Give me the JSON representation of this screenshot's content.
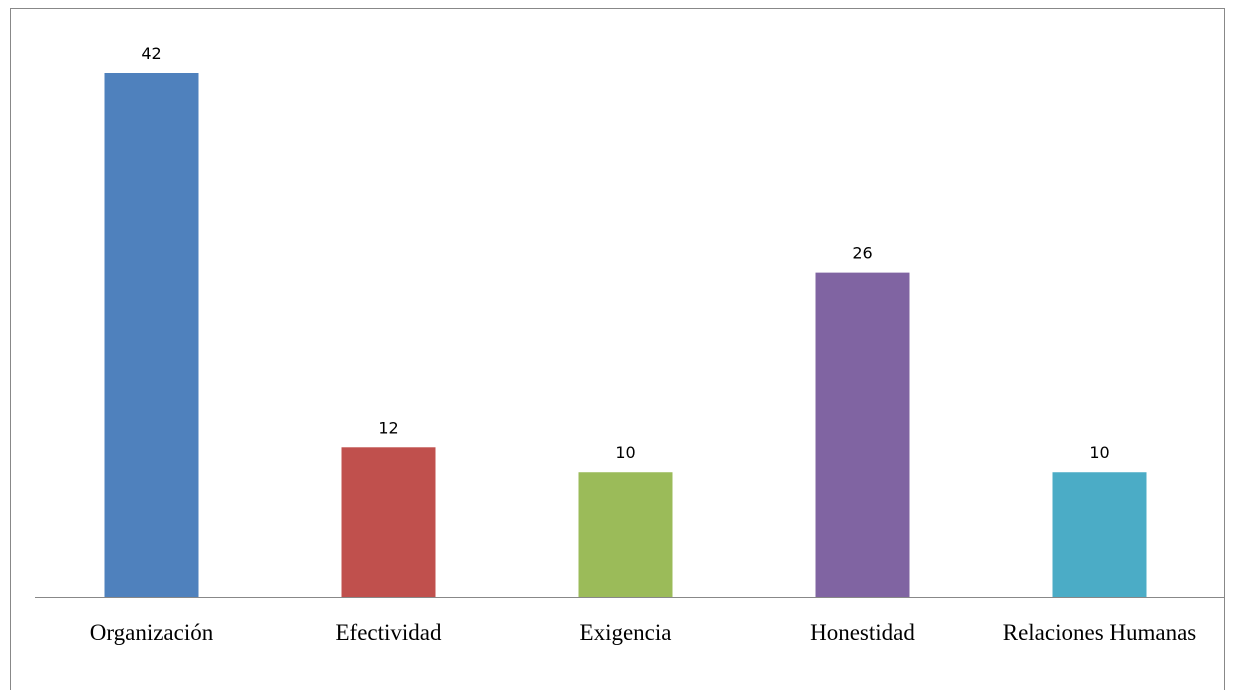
{
  "chart_data": {
    "type": "bar",
    "categories": [
      "Organización",
      "Efectividad",
      "Exigencia",
      "Honestidad",
      "Relaciones Humanas"
    ],
    "values": [
      42,
      12,
      10,
      26,
      10
    ],
    "colors": [
      "#4f81bd",
      "#c0504d",
      "#9bbb59",
      "#8064a2",
      "#4bacc6"
    ]
  }
}
